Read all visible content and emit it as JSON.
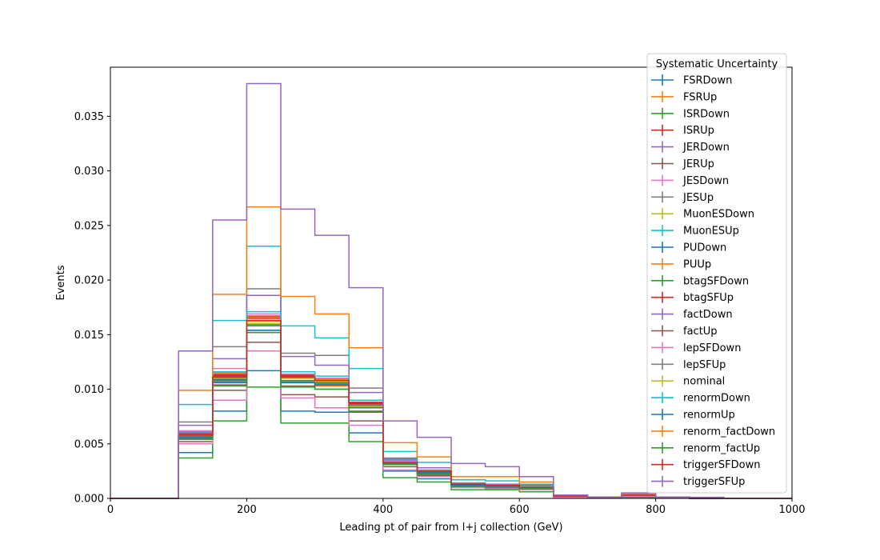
{
  "chart_data": {
    "type": "line",
    "title": "",
    "xlabel": "Leading pt of pair from l+j collection (GeV)",
    "ylabel": "Events",
    "xlim": [
      0,
      1000
    ],
    "ylim": [
      0,
      0.0395
    ],
    "xticks": [
      "0",
      "200",
      "400",
      "600",
      "800",
      "1000"
    ],
    "yticks": [
      "0.000",
      "0.005",
      "0.010",
      "0.015",
      "0.020",
      "0.025",
      "0.030",
      "0.035"
    ],
    "grid": false,
    "legend": {
      "title": "Systematic Uncertainty",
      "placement": "top-right"
    },
    "bin_edges": [
      0,
      50,
      100,
      150,
      200,
      250,
      300,
      350,
      400,
      450,
      500,
      550,
      600,
      650,
      700,
      750,
      800,
      850,
      900,
      950,
      1000
    ],
    "series": [
      {
        "name": "FSRDown",
        "color": "#1f77b4",
        "values": [
          0,
          0,
          0.0042,
          0.008,
          0.0117,
          0.008,
          0.0079,
          0.006,
          0.0025,
          0.0018,
          0.001,
          0.0009,
          0.0008,
          0.0001,
          0.0001,
          0.0002,
          0.0001,
          0,
          0,
          0
        ]
      },
      {
        "name": "FSRUp",
        "color": "#ff7f0e",
        "values": [
          0,
          0,
          0.0059,
          0.011,
          0.0163,
          0.0111,
          0.0103,
          0.0083,
          0.0033,
          0.0024,
          0.0012,
          0.0011,
          0.001,
          0.0002,
          0.0001,
          0.0003,
          0.0001,
          0,
          0,
          0
        ]
      },
      {
        "name": "ISRDown",
        "color": "#2ca02c",
        "values": [
          0,
          0,
          0.0037,
          0.0071,
          0.0102,
          0.0069,
          0.0069,
          0.0052,
          0.0019,
          0.0015,
          0.0008,
          0.0008,
          0.0006,
          0.0001,
          0.0001,
          0.0001,
          0.0001,
          0,
          0,
          0
        ]
      },
      {
        "name": "ISRUp",
        "color": "#d62728",
        "values": [
          0,
          0,
          0.0058,
          0.0113,
          0.0167,
          0.0113,
          0.0107,
          0.0087,
          0.0033,
          0.0025,
          0.0013,
          0.0012,
          0.001,
          0.0003,
          0.0001,
          0.0004,
          0.0001,
          0,
          0,
          0
        ]
      },
      {
        "name": "JERDown",
        "color": "#9467bd",
        "values": [
          0,
          0,
          0.006,
          0.0114,
          0.0163,
          0.011,
          0.0108,
          0.0085,
          0.0034,
          0.0024,
          0.0012,
          0.0011,
          0.001,
          0.0002,
          0.0001,
          0.0004,
          0.0001,
          0,
          0,
          0
        ]
      },
      {
        "name": "JERUp",
        "color": "#8c564b",
        "values": [
          0,
          0,
          0.0052,
          0.0099,
          0.0143,
          0.0095,
          0.0093,
          0.0071,
          0.0029,
          0.0021,
          0.0011,
          0.001,
          0.0009,
          0.0002,
          0.0001,
          0.0002,
          0.0001,
          0,
          0,
          0
        ]
      },
      {
        "name": "JESDown",
        "color": "#e377c2",
        "values": [
          0,
          0,
          0.005,
          0.009,
          0.0135,
          0.0092,
          0.0083,
          0.0067,
          0.0026,
          0.002,
          0.001,
          0.0009,
          0.0008,
          0.0001,
          0.0001,
          0.0002,
          0.0001,
          0,
          0,
          0
        ]
      },
      {
        "name": "JESUp",
        "color": "#7f7f7f",
        "values": [
          0,
          0,
          0.007,
          0.0139,
          0.0192,
          0.0133,
          0.0131,
          0.0101,
          0.0037,
          0.0028,
          0.0014,
          0.0013,
          0.0012,
          0.0003,
          0.0001,
          0.0004,
          0.0001,
          0,
          0,
          0
        ]
      },
      {
        "name": "MuonESDown",
        "color": "#bcbd22",
        "values": [
          0,
          0,
          0.0057,
          0.0108,
          0.016,
          0.0108,
          0.0104,
          0.0084,
          0.0032,
          0.0024,
          0.0012,
          0.0011,
          0.001,
          0.0002,
          0.0001,
          0.0003,
          0.0001,
          0,
          0,
          0
        ]
      },
      {
        "name": "MuonESUp",
        "color": "#17becf",
        "values": [
          0,
          0,
          0.0086,
          0.0163,
          0.0231,
          0.0158,
          0.0147,
          0.0119,
          0.0043,
          0.0033,
          0.0017,
          0.0016,
          0.0013,
          0.0002,
          0.0001,
          0.0004,
          0.0001,
          0,
          0,
          0
        ]
      },
      {
        "name": "PUDown",
        "color": "#1f77b4",
        "values": [
          0,
          0,
          0.0058,
          0.0109,
          0.0154,
          0.0106,
          0.0104,
          0.0083,
          0.0031,
          0.0023,
          0.0012,
          0.0011,
          0.0009,
          0.0002,
          0.0001,
          0.0003,
          0.0001,
          0,
          0,
          0
        ]
      },
      {
        "name": "PUUp",
        "color": "#ff7f0e",
        "values": [
          0,
          0,
          0.0061,
          0.0115,
          0.0166,
          0.0112,
          0.0109,
          0.0087,
          0.0034,
          0.0025,
          0.0013,
          0.0012,
          0.001,
          0.0003,
          0.0001,
          0.0004,
          0.0001,
          0,
          0,
          0
        ]
      },
      {
        "name": "btagSFDown",
        "color": "#2ca02c",
        "values": [
          0,
          0,
          0.0057,
          0.0108,
          0.0159,
          0.0108,
          0.0106,
          0.0086,
          0.0032,
          0.0024,
          0.0012,
          0.0011,
          0.001,
          0.0002,
          0.0001,
          0.0003,
          0.0001,
          0,
          0,
          0
        ]
      },
      {
        "name": "btagSFUp",
        "color": "#d62728",
        "values": [
          0,
          0,
          0.0059,
          0.0112,
          0.0165,
          0.0112,
          0.011,
          0.0088,
          0.0034,
          0.0025,
          0.0013,
          0.0012,
          0.001,
          0.0003,
          0.0001,
          0.0004,
          0.0001,
          0,
          0,
          0
        ]
      },
      {
        "name": "factDown",
        "color": "#9467bd",
        "values": [
          0,
          0,
          0.0067,
          0.0128,
          0.0186,
          0.013,
          0.0122,
          0.0097,
          0.0036,
          0.0028,
          0.0014,
          0.0013,
          0.0011,
          0.0002,
          0.0001,
          0.0004,
          0.0001,
          0,
          0,
          0
        ]
      },
      {
        "name": "factUp",
        "color": "#8c564b",
        "values": [
          0,
          0,
          0.0055,
          0.0104,
          0.0152,
          0.0103,
          0.01,
          0.0079,
          0.0031,
          0.0022,
          0.0011,
          0.001,
          0.0009,
          0.0002,
          0.0001,
          0.0003,
          0.0001,
          0,
          0,
          0
        ]
      },
      {
        "name": "lepSFDown",
        "color": "#e377c2",
        "values": [
          0,
          0,
          0.0062,
          0.0119,
          0.0169,
          0.0114,
          0.011,
          0.009,
          0.0034,
          0.0026,
          0.0013,
          0.0012,
          0.001,
          0.0003,
          0.0001,
          0.0004,
          0.0001,
          0,
          0,
          0
        ]
      },
      {
        "name": "lepSFUp",
        "color": "#7f7f7f",
        "values": [
          0,
          0,
          0.0056,
          0.0107,
          0.0158,
          0.0107,
          0.0105,
          0.0085,
          0.0032,
          0.0024,
          0.0012,
          0.0011,
          0.001,
          0.0002,
          0.0001,
          0.0003,
          0.0001,
          0,
          0,
          0
        ]
      },
      {
        "name": "nominal",
        "color": "#bcbd22",
        "values": [
          0,
          0,
          0.0058,
          0.011,
          0.0162,
          0.011,
          0.0107,
          0.0087,
          0.0033,
          0.0025,
          0.0013,
          0.0012,
          0.001,
          0.0002,
          0.0001,
          0.0003,
          0.0001,
          0,
          0,
          0
        ]
      },
      {
        "name": "renormDown",
        "color": "#17becf",
        "values": [
          0,
          0,
          0.0061,
          0.0116,
          0.0171,
          0.0116,
          0.0112,
          0.009,
          0.0035,
          0.0026,
          0.0013,
          0.0012,
          0.0011,
          0.0003,
          0.0001,
          0.0004,
          0.0001,
          0,
          0,
          0
        ]
      },
      {
        "name": "renormUp",
        "color": "#1f77b4",
        "values": [
          0,
          0,
          0.0056,
          0.0106,
          0.0154,
          0.0106,
          0.0104,
          0.0083,
          0.0032,
          0.0024,
          0.0012,
          0.0011,
          0.0009,
          0.0002,
          0.0001,
          0.0003,
          0.0001,
          0,
          0,
          0
        ]
      },
      {
        "name": "renorm_factDown",
        "color": "#ff7f0e",
        "values": [
          0,
          0,
          0.0099,
          0.0187,
          0.0267,
          0.0185,
          0.0169,
          0.0138,
          0.0051,
          0.0038,
          0.002,
          0.002,
          0.0015,
          0.0003,
          0.0001,
          0.0004,
          0.0001,
          0,
          0,
          0
        ]
      },
      {
        "name": "renorm_factUp",
        "color": "#2ca02c",
        "values": [
          0,
          0,
          0.0054,
          0.0103,
          0.0152,
          0.0102,
          0.01,
          0.008,
          0.0031,
          0.0022,
          0.0011,
          0.001,
          0.0009,
          0.0002,
          0.0001,
          0.0003,
          0.0001,
          0,
          0,
          0
        ]
      },
      {
        "name": "triggerSFDown",
        "color": "#d62728",
        "values": [
          0,
          0,
          0.0058,
          0.0111,
          0.0163,
          0.0111,
          0.0108,
          0.0087,
          0.0033,
          0.0025,
          0.0013,
          0.0012,
          0.001,
          0.0002,
          0.0001,
          0.0003,
          0.0001,
          0,
          0,
          0
        ]
      },
      {
        "name": "triggerSFUp",
        "color": "#9467bd",
        "values": [
          0,
          0,
          0.0135,
          0.0255,
          0.038,
          0.0265,
          0.0241,
          0.0193,
          0.0071,
          0.0056,
          0.0032,
          0.0029,
          0.002,
          0.0003,
          0.0001,
          0.0005,
          0.0001,
          0.0001,
          0,
          0
        ]
      }
    ]
  }
}
